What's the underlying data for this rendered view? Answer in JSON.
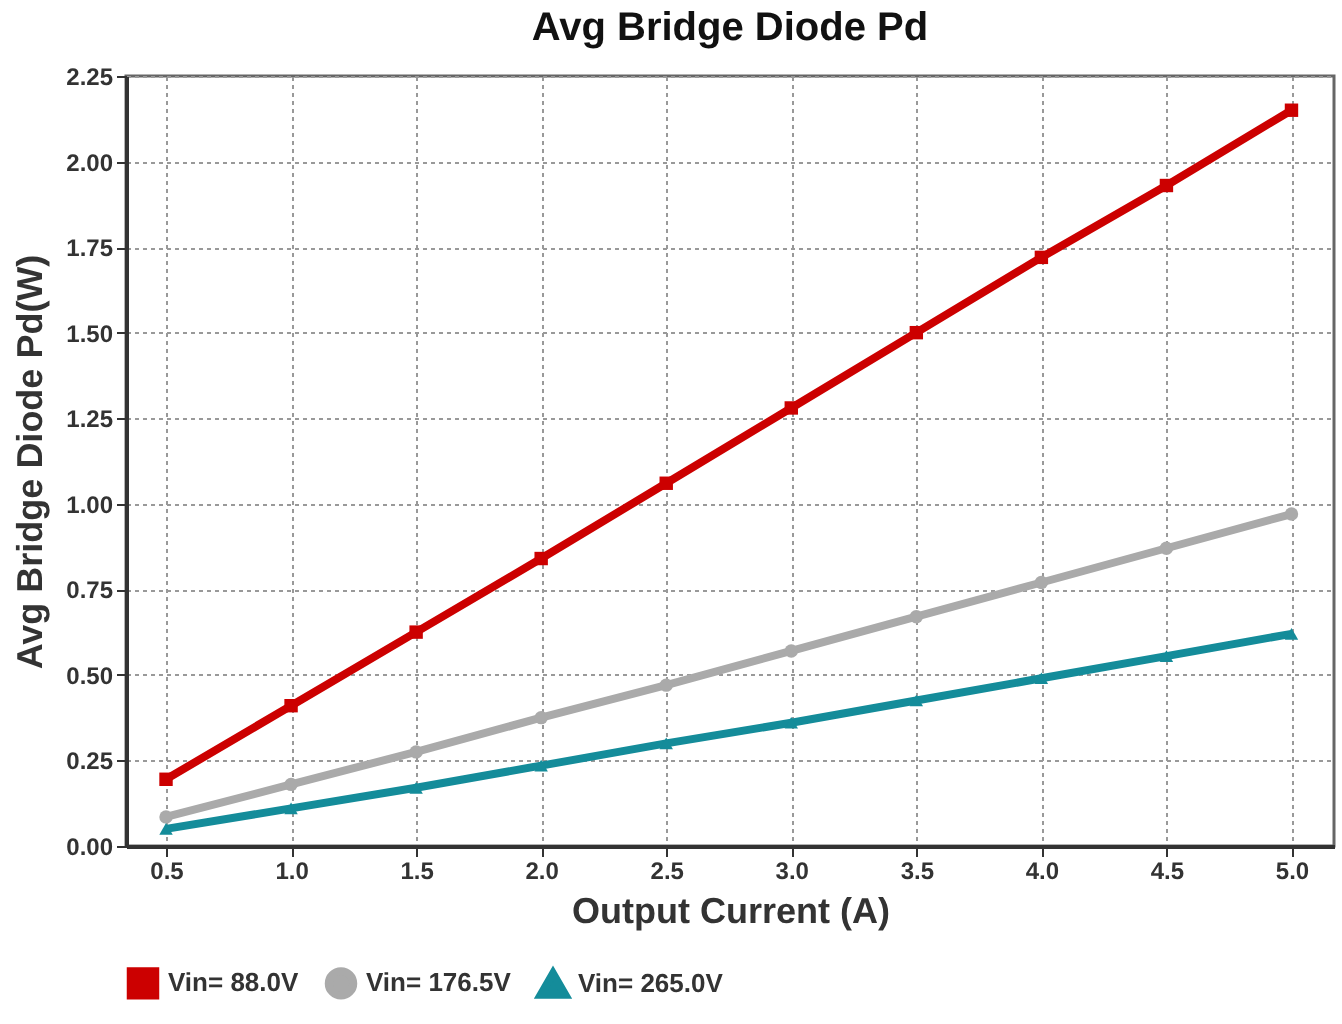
{
  "chart_data": {
    "type": "line",
    "title": "Avg Bridge Diode Pd",
    "xlabel": "Output Current (A)",
    "ylabel": "Avg Bridge Diode Pd(W)",
    "x": [
      0.5,
      1.0,
      1.5,
      2.0,
      2.5,
      3.0,
      3.5,
      4.0,
      4.5,
      5.0
    ],
    "xlim": [
      0.34,
      5.17
    ],
    "xticks": [
      {
        "value": 0.5,
        "label": "0.5"
      },
      {
        "value": 1,
        "label": "1.0"
      },
      {
        "value": 1.5,
        "label": "1.5"
      },
      {
        "value": 2,
        "label": "2.0"
      },
      {
        "value": 2.5,
        "label": "2.5"
      },
      {
        "value": 3,
        "label": "3.0"
      },
      {
        "value": 3.5,
        "label": "3.5"
      },
      {
        "value": 4,
        "label": "4.0"
      },
      {
        "value": 4.5,
        "label": "4.5"
      },
      {
        "value": 5,
        "label": "5.0"
      }
    ],
    "ylim": [
      0,
      2.25
    ],
    "yticks": [
      {
        "value": 0,
        "label": "0.00"
      },
      {
        "value": 0.25,
        "label": "0.25"
      },
      {
        "value": 0.5,
        "label": "0.50"
      },
      {
        "value": 0.75,
        "label": "0.75"
      },
      {
        "value": 1,
        "label": "1.00"
      },
      {
        "value": 1.25,
        "label": "1.25"
      },
      {
        "value": 1.5,
        "label": "1.50"
      },
      {
        "value": 1.75,
        "label": "1.75"
      },
      {
        "value": 2,
        "label": "2.00"
      },
      {
        "value": 2.25,
        "label": "2.25"
      }
    ],
    "grid": true,
    "legend": "bottom",
    "line_style": "solid",
    "series": [
      {
        "name": "Vin= 88.0V",
        "color": "#cc0000",
        "marker": "square",
        "values": [
          0.195,
          0.41,
          0.625,
          0.84,
          1.06,
          1.28,
          1.5,
          1.72,
          1.93,
          2.15
        ]
      },
      {
        "name": "Vin= 176.5V",
        "color": "#aaaaaa",
        "marker": "circle",
        "values": [
          0.085,
          0.18,
          0.275,
          0.375,
          0.47,
          0.57,
          0.67,
          0.77,
          0.87,
          0.97
        ]
      },
      {
        "name": "Vin= 265.0V",
        "color": "#148c9a",
        "marker": "triangle",
        "values": [
          0.05,
          0.11,
          0.17,
          0.235,
          0.3,
          0.36,
          0.425,
          0.49,
          0.555,
          0.62
        ]
      }
    ]
  }
}
